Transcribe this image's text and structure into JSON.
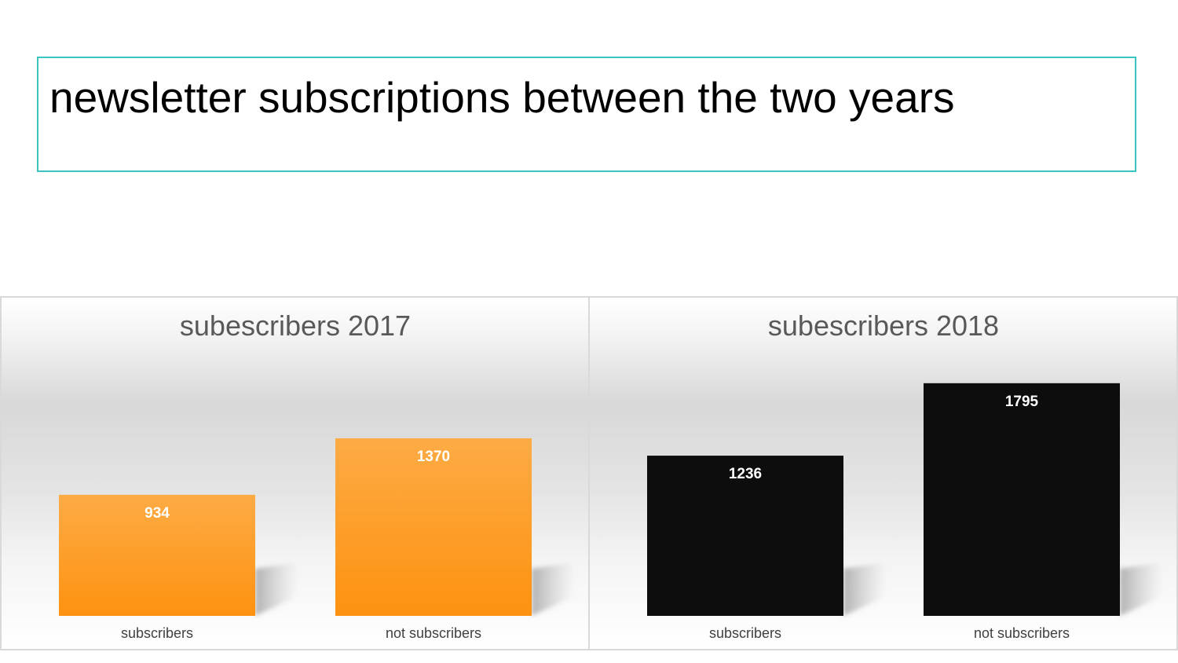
{
  "title": "newsletter subscriptions between the two years",
  "colors": {
    "title_border": "#3cc4c0",
    "bar_2017_top": "#fdab45",
    "bar_2017_bottom": "#fd9210",
    "bar_2018": "#0d0d0d"
  },
  "chart_data": [
    {
      "type": "bar",
      "title": "subescribers 2017",
      "categories": [
        "subscribers",
        "not subscribers"
      ],
      "values": [
        934,
        1370
      ],
      "xlabel": "",
      "ylabel": "",
      "ylim": [
        0,
        2000
      ],
      "grid": false,
      "legend": "none",
      "color": "orange-gradient"
    },
    {
      "type": "bar",
      "title": "subescribers 2018",
      "categories": [
        "subscribers",
        "not subscribers"
      ],
      "values": [
        1236,
        1795
      ],
      "xlabel": "",
      "ylabel": "",
      "ylim": [
        0,
        2000
      ],
      "grid": false,
      "legend": "none",
      "color": "black"
    }
  ]
}
